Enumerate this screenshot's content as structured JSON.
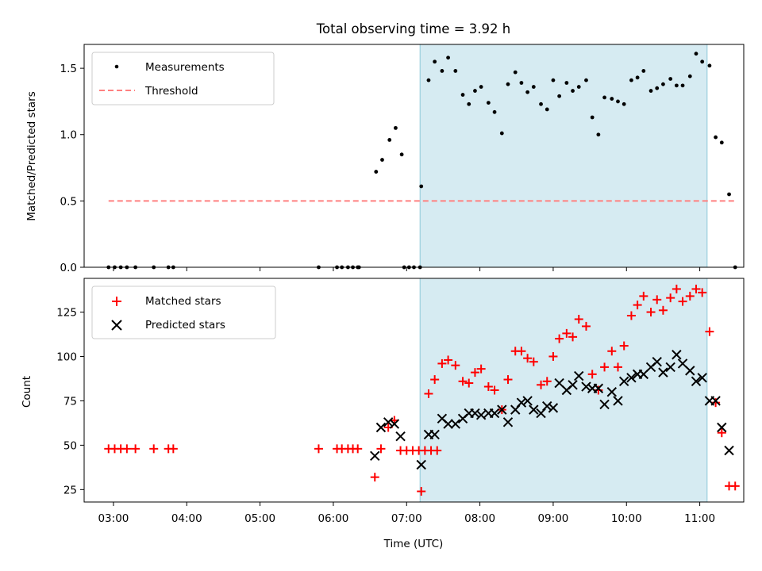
{
  "chart_data": [
    {
      "type": "scatter",
      "title": "Total observing time = 3.92 h",
      "ylabel": "Matched/Predicted stars",
      "xlabel": "",
      "xlim": [
        "02:36",
        "11:36"
      ],
      "ylim": [
        0,
        1.68
      ],
      "yticks": [
        "0.0",
        "0.5",
        "1.0",
        "1.5"
      ],
      "shaded_region": {
        "start": "07:11",
        "end": "11:06",
        "color": "#add8e6"
      },
      "legend": {
        "position": "top-left",
        "entries": [
          "Measurements",
          "Threshold"
        ]
      },
      "series": [
        {
          "name": "Measurements",
          "color": "#000000",
          "marker": "dot",
          "points": [
            [
              "02:56",
              0
            ],
            [
              "03:01",
              0
            ],
            [
              "03:06",
              0
            ],
            [
              "03:11",
              0
            ],
            [
              "03:18",
              0
            ],
            [
              "03:33",
              0
            ],
            [
              "03:45",
              0
            ],
            [
              "03:49",
              0
            ],
            [
              "05:48",
              0
            ],
            [
              "06:03",
              0
            ],
            [
              "06:07",
              0
            ],
            [
              "06:12",
              0
            ],
            [
              "06:16",
              0
            ],
            [
              "06:20",
              0
            ],
            [
              "06:21",
              0
            ],
            [
              "06:35",
              0.72
            ],
            [
              "06:40",
              0.81
            ],
            [
              "06:46",
              0.96
            ],
            [
              "06:51",
              1.05
            ],
            [
              "06:56",
              0.85
            ],
            [
              "06:58",
              0
            ],
            [
              "07:02",
              0
            ],
            [
              "07:06",
              0
            ],
            [
              "07:11",
              0
            ],
            [
              "07:12",
              0.61
            ],
            [
              "07:18",
              1.41
            ],
            [
              "07:23",
              1.55
            ],
            [
              "07:29",
              1.48
            ],
            [
              "07:34",
              1.58
            ],
            [
              "07:40",
              1.48
            ],
            [
              "07:46",
              1.3
            ],
            [
              "07:51",
              1.23
            ],
            [
              "07:56",
              1.33
            ],
            [
              "08:01",
              1.36
            ],
            [
              "08:07",
              1.24
            ],
            [
              "08:12",
              1.17
            ],
            [
              "08:18",
              1.01
            ],
            [
              "08:23",
              1.38
            ],
            [
              "08:29",
              1.47
            ],
            [
              "08:34",
              1.39
            ],
            [
              "08:39",
              1.32
            ],
            [
              "08:44",
              1.36
            ],
            [
              "08:50",
              1.23
            ],
            [
              "08:55",
              1.19
            ],
            [
              "09:00",
              1.41
            ],
            [
              "09:05",
              1.29
            ],
            [
              "09:11",
              1.39
            ],
            [
              "09:16",
              1.33
            ],
            [
              "09:21",
              1.36
            ],
            [
              "09:27",
              1.41
            ],
            [
              "09:32",
              1.13
            ],
            [
              "09:37",
              1.0
            ],
            [
              "09:42",
              1.28
            ],
            [
              "09:48",
              1.27
            ],
            [
              "09:53",
              1.25
            ],
            [
              "09:58",
              1.23
            ],
            [
              "10:04",
              1.41
            ],
            [
              "10:09",
              1.43
            ],
            [
              "10:14",
              1.48
            ],
            [
              "10:20",
              1.33
            ],
            [
              "10:25",
              1.35
            ],
            [
              "10:30",
              1.38
            ],
            [
              "10:36",
              1.42
            ],
            [
              "10:41",
              1.37
            ],
            [
              "10:46",
              1.37
            ],
            [
              "10:52",
              1.44
            ],
            [
              "10:57",
              1.61
            ],
            [
              "11:02",
              1.55
            ],
            [
              "11:08",
              1.52
            ],
            [
              "11:13",
              0.98
            ],
            [
              "11:18",
              0.94
            ],
            [
              "11:24",
              0.55
            ],
            [
              "11:29",
              0
            ]
          ]
        },
        {
          "name": "Threshold",
          "color": "#ff8080",
          "style": "dashed",
          "points": [
            [
              "02:56",
              0.5
            ],
            [
              "11:29",
              0.5
            ]
          ]
        }
      ]
    },
    {
      "type": "scatter",
      "title": "",
      "xlabel": "Time (UTC)",
      "ylabel": "Count",
      "xlim": [
        "02:36",
        "11:36"
      ],
      "ylim": [
        18,
        144
      ],
      "xticks": [
        "03:00",
        "04:00",
        "05:00",
        "06:00",
        "07:00",
        "08:00",
        "09:00",
        "10:00",
        "11:00"
      ],
      "yticks": [
        "25",
        "50",
        "75",
        "100",
        "125"
      ],
      "shaded_region": {
        "start": "07:11",
        "end": "11:06",
        "color": "#add8e6"
      },
      "legend": {
        "position": "top-left",
        "entries": [
          "Matched stars",
          "Predicted stars"
        ]
      },
      "series": [
        {
          "name": "Matched stars",
          "color": "#ff0000",
          "marker": "plus",
          "points": [
            [
              "02:56",
              48
            ],
            [
              "03:01",
              48
            ],
            [
              "03:06",
              48
            ],
            [
              "03:11",
              48
            ],
            [
              "03:18",
              48
            ],
            [
              "03:33",
              48
            ],
            [
              "03:45",
              48
            ],
            [
              "03:49",
              48
            ],
            [
              "05:48",
              48
            ],
            [
              "06:03",
              48
            ],
            [
              "06:07",
              48
            ],
            [
              "06:12",
              48
            ],
            [
              "06:16",
              48
            ],
            [
              "06:20",
              48
            ],
            [
              "06:34",
              32
            ],
            [
              "06:39",
              48
            ],
            [
              "06:45",
              60
            ],
            [
              "06:50",
              64
            ],
            [
              "06:55",
              47
            ],
            [
              "07:00",
              47
            ],
            [
              "07:05",
              47
            ],
            [
              "07:10",
              47
            ],
            [
              "07:15",
              47
            ],
            [
              "07:20",
              47
            ],
            [
              "07:25",
              47
            ],
            [
              "07:12",
              24
            ],
            [
              "07:18",
              79
            ],
            [
              "07:23",
              87
            ],
            [
              "07:29",
              96
            ],
            [
              "07:34",
              98
            ],
            [
              "07:40",
              95
            ],
            [
              "07:46",
              86
            ],
            [
              "07:51",
              85
            ],
            [
              "07:56",
              91
            ],
            [
              "08:01",
              93
            ],
            [
              "08:07",
              83
            ],
            [
              "08:12",
              81
            ],
            [
              "08:18",
              70
            ],
            [
              "08:23",
              87
            ],
            [
              "08:29",
              103
            ],
            [
              "08:34",
              103
            ],
            [
              "08:39",
              99
            ],
            [
              "08:44",
              97
            ],
            [
              "08:50",
              84
            ],
            [
              "08:55",
              86
            ],
            [
              "09:00",
              100
            ],
            [
              "09:05",
              110
            ],
            [
              "09:11",
              113
            ],
            [
              "09:16",
              111
            ],
            [
              "09:21",
              121
            ],
            [
              "09:27",
              117
            ],
            [
              "09:32",
              90
            ],
            [
              "09:37",
              81
            ],
            [
              "09:42",
              94
            ],
            [
              "09:48",
              103
            ],
            [
              "09:53",
              94
            ],
            [
              "09:58",
              106
            ],
            [
              "10:04",
              123
            ],
            [
              "10:09",
              129
            ],
            [
              "10:14",
              134
            ],
            [
              "10:20",
              125
            ],
            [
              "10:25",
              132
            ],
            [
              "10:30",
              126
            ],
            [
              "10:36",
              133
            ],
            [
              "10:41",
              138
            ],
            [
              "10:46",
              131
            ],
            [
              "10:52",
              134
            ],
            [
              "10:57",
              138
            ],
            [
              "11:02",
              136
            ],
            [
              "11:08",
              114
            ],
            [
              "11:13",
              74
            ],
            [
              "11:18",
              57
            ],
            [
              "11:24",
              27
            ],
            [
              "11:29",
              27
            ]
          ]
        },
        {
          "name": "Predicted stars",
          "color": "#000000",
          "marker": "x",
          "points": [
            [
              "06:34",
              44
            ],
            [
              "06:39",
              60
            ],
            [
              "06:45",
              63
            ],
            [
              "06:50",
              62
            ],
            [
              "06:55",
              55
            ],
            [
              "07:12",
              39
            ],
            [
              "07:18",
              56
            ],
            [
              "07:23",
              56
            ],
            [
              "07:29",
              65
            ],
            [
              "07:34",
              62
            ],
            [
              "07:40",
              62
            ],
            [
              "07:46",
              65
            ],
            [
              "07:51",
              68
            ],
            [
              "07:56",
              68
            ],
            [
              "08:01",
              67
            ],
            [
              "08:07",
              68
            ],
            [
              "08:12",
              68
            ],
            [
              "08:18",
              70
            ],
            [
              "08:23",
              63
            ],
            [
              "08:29",
              70
            ],
            [
              "08:34",
              74
            ],
            [
              "08:39",
              75
            ],
            [
              "08:44",
              70
            ],
            [
              "08:50",
              68
            ],
            [
              "08:55",
              72
            ],
            [
              "09:00",
              71
            ],
            [
              "09:05",
              85
            ],
            [
              "09:11",
              81
            ],
            [
              "09:16",
              84
            ],
            [
              "09:21",
              89
            ],
            [
              "09:27",
              83
            ],
            [
              "09:32",
              82
            ],
            [
              "09:37",
              82
            ],
            [
              "09:42",
              73
            ],
            [
              "09:48",
              80
            ],
            [
              "09:53",
              75
            ],
            [
              "09:58",
              86
            ],
            [
              "10:04",
              88
            ],
            [
              "10:09",
              90
            ],
            [
              "10:14",
              90
            ],
            [
              "10:20",
              94
            ],
            [
              "10:25",
              97
            ],
            [
              "10:30",
              91
            ],
            [
              "10:36",
              94
            ],
            [
              "10:41",
              101
            ],
            [
              "10:46",
              96
            ],
            [
              "10:52",
              92
            ],
            [
              "10:57",
              86
            ],
            [
              "11:02",
              88
            ],
            [
              "11:08",
              75
            ],
            [
              "11:13",
              75
            ],
            [
              "11:18",
              60
            ],
            [
              "11:24",
              47
            ]
          ]
        }
      ]
    }
  ]
}
